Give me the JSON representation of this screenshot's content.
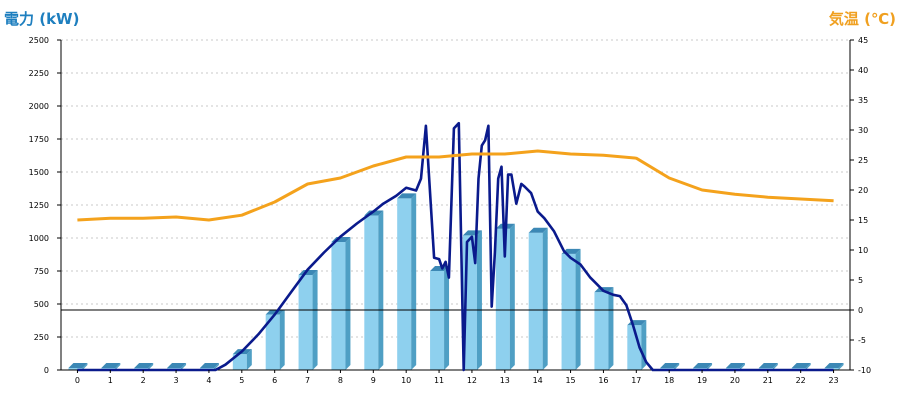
{
  "chart_data": {
    "type": "bar",
    "ylabel": "電力 (kW)",
    "y2label": "気温 (℃)",
    "categories": [
      "0",
      "1",
      "2",
      "3",
      "4",
      "5",
      "6",
      "7",
      "8",
      "9",
      "10",
      "11",
      "12",
      "13",
      "14",
      "15",
      "16",
      "17",
      "18",
      "19",
      "20",
      "21",
      "22",
      "23"
    ],
    "ylim": [
      0,
      2500
    ],
    "y2lim": [
      -10,
      45
    ],
    "yticks": [
      0,
      250,
      500,
      750,
      1000,
      1250,
      1500,
      1750,
      2000,
      2250,
      2500
    ],
    "y2ticks": [
      -10,
      -5,
      0,
      5,
      10,
      15,
      20,
      25,
      30,
      35,
      40,
      45
    ],
    "grid": true,
    "reference_line": {
      "axis": "y2",
      "value": 0
    },
    "series": [
      {
        "kind": "bar",
        "axis": "y",
        "values": [
          0,
          0,
          0,
          0,
          0,
          120,
          420,
          720,
          970,
          1170,
          1300,
          750,
          1020,
          1070,
          1040,
          880,
          590,
          340,
          0,
          0,
          0,
          0,
          0,
          0
        ]
      },
      {
        "kind": "line",
        "axis": "y",
        "x": [
          0,
          4.2,
          4.5,
          5,
          5.5,
          6,
          6.5,
          7,
          7.5,
          8,
          8.5,
          9,
          9.3,
          9.7,
          10,
          10.3,
          10.45,
          10.6,
          10.85,
          11,
          11.1,
          11.2,
          11.3,
          11.45,
          11.6,
          11.75,
          11.85,
          12,
          12.1,
          12.2,
          12.3,
          12.4,
          12.5,
          12.6,
          12.7,
          12.8,
          12.9,
          13,
          13.1,
          13.2,
          13.35,
          13.5,
          13.6,
          13.8,
          14,
          14.2,
          14.5,
          14.8,
          15,
          15.3,
          15.6,
          15.8,
          16,
          16.3,
          16.5,
          16.7,
          16.9,
          17.1,
          17.3,
          17.5,
          23
        ],
        "values": [
          0,
          0,
          40,
          140,
          270,
          420,
          590,
          760,
          890,
          1010,
          1110,
          1200,
          1260,
          1320,
          1380,
          1360,
          1450,
          1850,
          850,
          840,
          770,
          820,
          700,
          1830,
          1870,
          0,
          970,
          1010,
          810,
          1450,
          1700,
          1740,
          1850,
          480,
          890,
          1450,
          1540,
          860,
          1480,
          1480,
          1260,
          1410,
          1390,
          1340,
          1200,
          1150,
          1050,
          900,
          850,
          800,
          700,
          650,
          600,
          570,
          560,
          490,
          340,
          170,
          60,
          0,
          0
        ]
      },
      {
        "kind": "line",
        "axis": "y2",
        "values": [
          15,
          15.3,
          15.3,
          15.5,
          15,
          15.8,
          18,
          21,
          22,
          24,
          25.5,
          25.5,
          26,
          26,
          26.5,
          26,
          25.8,
          25.3,
          22,
          20,
          19.3,
          18.8,
          18.5,
          18.2
        ]
      }
    ]
  }
}
